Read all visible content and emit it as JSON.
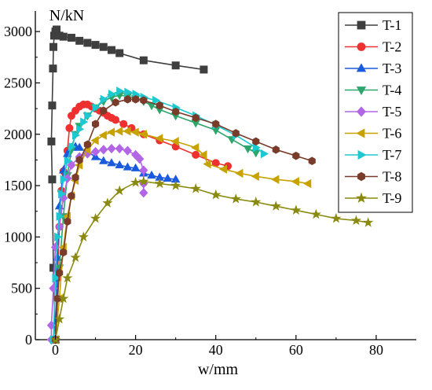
{
  "chart_data": {
    "type": "line",
    "xlabel": "w/mm",
    "ylabel": "N/kN",
    "xlim": [
      -5,
      90
    ],
    "ylim": [
      0,
      3200
    ],
    "x_ticks": [
      0,
      20,
      40,
      60,
      80
    ],
    "y_ticks": [
      0,
      500,
      1000,
      1500,
      2000,
      2500,
      3000
    ],
    "grid": false,
    "legend_position": "top-right",
    "series": [
      {
        "name": "T-1",
        "marker": "square",
        "color": "#3f3f3f",
        "points": [
          [
            0,
            0
          ],
          [
            -0.5,
            700
          ],
          [
            -0.8,
            1560
          ],
          [
            -1,
            1930
          ],
          [
            -0.8,
            2280
          ],
          [
            -0.6,
            2640
          ],
          [
            -0.5,
            2850
          ],
          [
            -0.3,
            2960
          ],
          [
            0,
            3000
          ],
          [
            0.3,
            3020
          ],
          [
            1,
            2960
          ],
          [
            2,
            2950
          ],
          [
            4,
            2940
          ],
          [
            6,
            2910
          ],
          [
            8,
            2890
          ],
          [
            10,
            2870
          ],
          [
            12,
            2850
          ],
          [
            14,
            2820
          ],
          [
            16,
            2790
          ],
          [
            22,
            2720
          ],
          [
            30,
            2670
          ],
          [
            37,
            2630
          ]
        ]
      },
      {
        "name": "T-2",
        "marker": "circle",
        "color": "#ee3030",
        "points": [
          [
            0,
            0
          ],
          [
            0.5,
            600
          ],
          [
            1,
            1100
          ],
          [
            1.5,
            1450
          ],
          [
            2,
            1640
          ],
          [
            3,
            1840
          ],
          [
            3.5,
            2060
          ],
          [
            4,
            2180
          ],
          [
            5,
            2230
          ],
          [
            6,
            2270
          ],
          [
            7,
            2290
          ],
          [
            8,
            2290
          ],
          [
            9,
            2270
          ],
          [
            10,
            2250
          ],
          [
            11,
            2230
          ],
          [
            12,
            2210
          ],
          [
            13,
            2180
          ],
          [
            14,
            2160
          ],
          [
            15,
            2140
          ],
          [
            17,
            2100
          ],
          [
            19,
            2060
          ],
          [
            22,
            2000
          ],
          [
            26,
            1940
          ],
          [
            30,
            1880
          ],
          [
            35,
            1800
          ],
          [
            40,
            1720
          ],
          [
            43,
            1690
          ]
        ]
      },
      {
        "name": "T-3",
        "marker": "triangle-up",
        "color": "#1a5adc",
        "points": [
          [
            0,
            0
          ],
          [
            0.5,
            800
          ],
          [
            1,
            1300
          ],
          [
            2,
            1650
          ],
          [
            3,
            1810
          ],
          [
            4,
            1870
          ],
          [
            5,
            1880
          ],
          [
            6,
            1870
          ],
          [
            8,
            1830
          ],
          [
            10,
            1780
          ],
          [
            12,
            1740
          ],
          [
            14,
            1720
          ],
          [
            16,
            1700
          ],
          [
            18,
            1680
          ],
          [
            20,
            1670
          ],
          [
            22,
            1620
          ],
          [
            24,
            1600
          ],
          [
            26,
            1580
          ],
          [
            28,
            1570
          ],
          [
            30,
            1560
          ]
        ]
      },
      {
        "name": "T-4",
        "marker": "triangle-down",
        "color": "#2ea56a",
        "points": [
          [
            0,
            0
          ],
          [
            1,
            700
          ],
          [
            2,
            1200
          ],
          [
            3,
            1600
          ],
          [
            4,
            1850
          ],
          [
            5,
            2000
          ],
          [
            6,
            2080
          ],
          [
            8,
            2180
          ],
          [
            10,
            2260
          ],
          [
            12,
            2320
          ],
          [
            14,
            2360
          ],
          [
            16,
            2380
          ],
          [
            18,
            2370
          ],
          [
            20,
            2350
          ],
          [
            22,
            2320
          ],
          [
            24,
            2280
          ],
          [
            26,
            2240
          ],
          [
            30,
            2180
          ],
          [
            35,
            2110
          ],
          [
            40,
            2040
          ],
          [
            44,
            1950
          ],
          [
            48,
            1860
          ],
          [
            50,
            1820
          ]
        ]
      },
      {
        "name": "T-5",
        "marker": "diamond",
        "color": "#b266e6",
        "points": [
          [
            -1,
            0
          ],
          [
            -1,
            140
          ],
          [
            -0.5,
            500
          ],
          [
            0,
            900
          ],
          [
            1,
            1100
          ],
          [
            2,
            1380
          ],
          [
            3,
            1570
          ],
          [
            4,
            1700
          ],
          [
            6,
            1780
          ],
          [
            8,
            1810
          ],
          [
            10,
            1830
          ],
          [
            12,
            1850
          ],
          [
            14,
            1860
          ],
          [
            16,
            1860
          ],
          [
            18,
            1840
          ],
          [
            20,
            1800
          ],
          [
            21,
            1760
          ],
          [
            22,
            1650
          ],
          [
            22,
            1520
          ],
          [
            22,
            1430
          ]
        ]
      },
      {
        "name": "T-6",
        "marker": "triangle-left",
        "color": "#c8a300",
        "points": [
          [
            0,
            0
          ],
          [
            1,
            400
          ],
          [
            2,
            900
          ],
          [
            3,
            1200
          ],
          [
            4,
            1400
          ],
          [
            5,
            1550
          ],
          [
            6,
            1700
          ],
          [
            8,
            1850
          ],
          [
            10,
            1940
          ],
          [
            12,
            1990
          ],
          [
            14,
            2020
          ],
          [
            16,
            2030
          ],
          [
            18,
            2030
          ],
          [
            20,
            2020
          ],
          [
            22,
            2000
          ],
          [
            26,
            1960
          ],
          [
            30,
            1930
          ],
          [
            35,
            1870
          ],
          [
            37,
            1800
          ],
          [
            38,
            1710
          ],
          [
            42,
            1660
          ],
          [
            46,
            1620
          ],
          [
            50,
            1590
          ],
          [
            55,
            1560
          ],
          [
            60,
            1540
          ],
          [
            63,
            1520
          ]
        ]
      },
      {
        "name": "T-7",
        "marker": "triangle-right",
        "color": "#1ec8d0",
        "points": [
          [
            -0.5,
            0
          ],
          [
            0,
            600
          ],
          [
            0.5,
            1000
          ],
          [
            1,
            1200
          ],
          [
            1.5,
            1420
          ],
          [
            2,
            1560
          ],
          [
            3,
            1740
          ],
          [
            4,
            1880
          ],
          [
            5,
            1990
          ],
          [
            6,
            2050
          ],
          [
            7,
            2120
          ],
          [
            8,
            2180
          ],
          [
            10,
            2260
          ],
          [
            12,
            2340
          ],
          [
            14,
            2390
          ],
          [
            16,
            2420
          ],
          [
            18,
            2410
          ],
          [
            20,
            2390
          ],
          [
            22,
            2360
          ],
          [
            25,
            2330
          ],
          [
            30,
            2260
          ],
          [
            35,
            2180
          ],
          [
            40,
            2090
          ],
          [
            45,
            1990
          ],
          [
            50,
            1870
          ],
          [
            52,
            1810
          ]
        ]
      },
      {
        "name": "T-8",
        "marker": "hexagon",
        "color": "#7a3c2a",
        "points": [
          [
            0,
            0
          ],
          [
            0.5,
            400
          ],
          [
            1,
            650
          ],
          [
            2,
            850
          ],
          [
            3,
            1150
          ],
          [
            4,
            1400
          ],
          [
            5,
            1580
          ],
          [
            6,
            1750
          ],
          [
            8,
            1900
          ],
          [
            10,
            2100
          ],
          [
            12,
            2230
          ],
          [
            15,
            2310
          ],
          [
            18,
            2340
          ],
          [
            20,
            2340
          ],
          [
            22,
            2330
          ],
          [
            26,
            2280
          ],
          [
            30,
            2220
          ],
          [
            35,
            2160
          ],
          [
            40,
            2100
          ],
          [
            45,
            2010
          ],
          [
            50,
            1930
          ],
          [
            55,
            1850
          ],
          [
            60,
            1790
          ],
          [
            64,
            1740
          ]
        ]
      },
      {
        "name": "T-9",
        "marker": "star",
        "color": "#8a8a10",
        "points": [
          [
            0,
            0
          ],
          [
            1,
            200
          ],
          [
            2,
            400
          ],
          [
            3,
            600
          ],
          [
            5,
            800
          ],
          [
            7,
            1000
          ],
          [
            10,
            1180
          ],
          [
            13,
            1330
          ],
          [
            16,
            1450
          ],
          [
            20,
            1530
          ],
          [
            22,
            1540
          ],
          [
            26,
            1520
          ],
          [
            30,
            1500
          ],
          [
            35,
            1470
          ],
          [
            40,
            1410
          ],
          [
            45,
            1370
          ],
          [
            50,
            1340
          ],
          [
            55,
            1300
          ],
          [
            60,
            1260
          ],
          [
            65,
            1220
          ],
          [
            70,
            1180
          ],
          [
            75,
            1160
          ],
          [
            78,
            1140
          ]
        ]
      }
    ]
  }
}
